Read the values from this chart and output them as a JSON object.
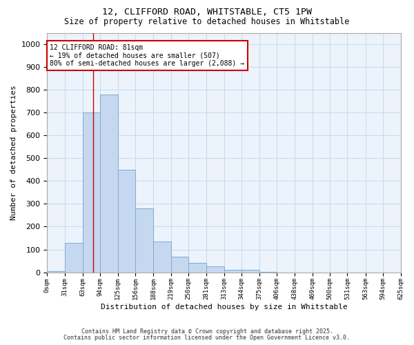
{
  "title_line1": "12, CLIFFORD ROAD, WHITSTABLE, CT5 1PW",
  "title_line2": "Size of property relative to detached houses in Whitstable",
  "xlabel": "Distribution of detached houses by size in Whitstable",
  "ylabel": "Number of detached properties",
  "bar_color": "#c5d8f0",
  "bar_edge_color": "#7aadd4",
  "bin_edges": [
    0,
    31,
    63,
    94,
    125,
    156,
    188,
    219,
    250,
    281,
    313,
    344,
    375,
    406,
    438,
    469,
    500,
    531,
    563,
    594,
    625
  ],
  "bar_heights": [
    5,
    130,
    700,
    780,
    450,
    280,
    135,
    68,
    40,
    25,
    12,
    10,
    1,
    0,
    0,
    0,
    0,
    0,
    0,
    0
  ],
  "tick_labels": [
    "0sqm",
    "31sqm",
    "63sqm",
    "94sqm",
    "125sqm",
    "156sqm",
    "188sqm",
    "219sqm",
    "250sqm",
    "281sqm",
    "313sqm",
    "344sqm",
    "375sqm",
    "406sqm",
    "438sqm",
    "469sqm",
    "500sqm",
    "531sqm",
    "563sqm",
    "594sqm",
    "625sqm"
  ],
  "ylim": [
    0,
    1050
  ],
  "yticks": [
    0,
    100,
    200,
    300,
    400,
    500,
    600,
    700,
    800,
    900,
    1000
  ],
  "property_line_x": 81,
  "annotation_text": "12 CLIFFORD ROAD: 81sqm\n← 19% of detached houses are smaller (507)\n80% of semi-detached houses are larger (2,088) →",
  "annotation_box_color": "#ffffff",
  "annotation_box_edge_color": "#cc0000",
  "grid_color": "#c8dcf0",
  "background_color": "#ffffff",
  "plot_bg_color": "#edf3fb",
  "footnote1": "Contains HM Land Registry data © Crown copyright and database right 2025.",
  "footnote2": "Contains public sector information licensed under the Open Government Licence v3.0."
}
